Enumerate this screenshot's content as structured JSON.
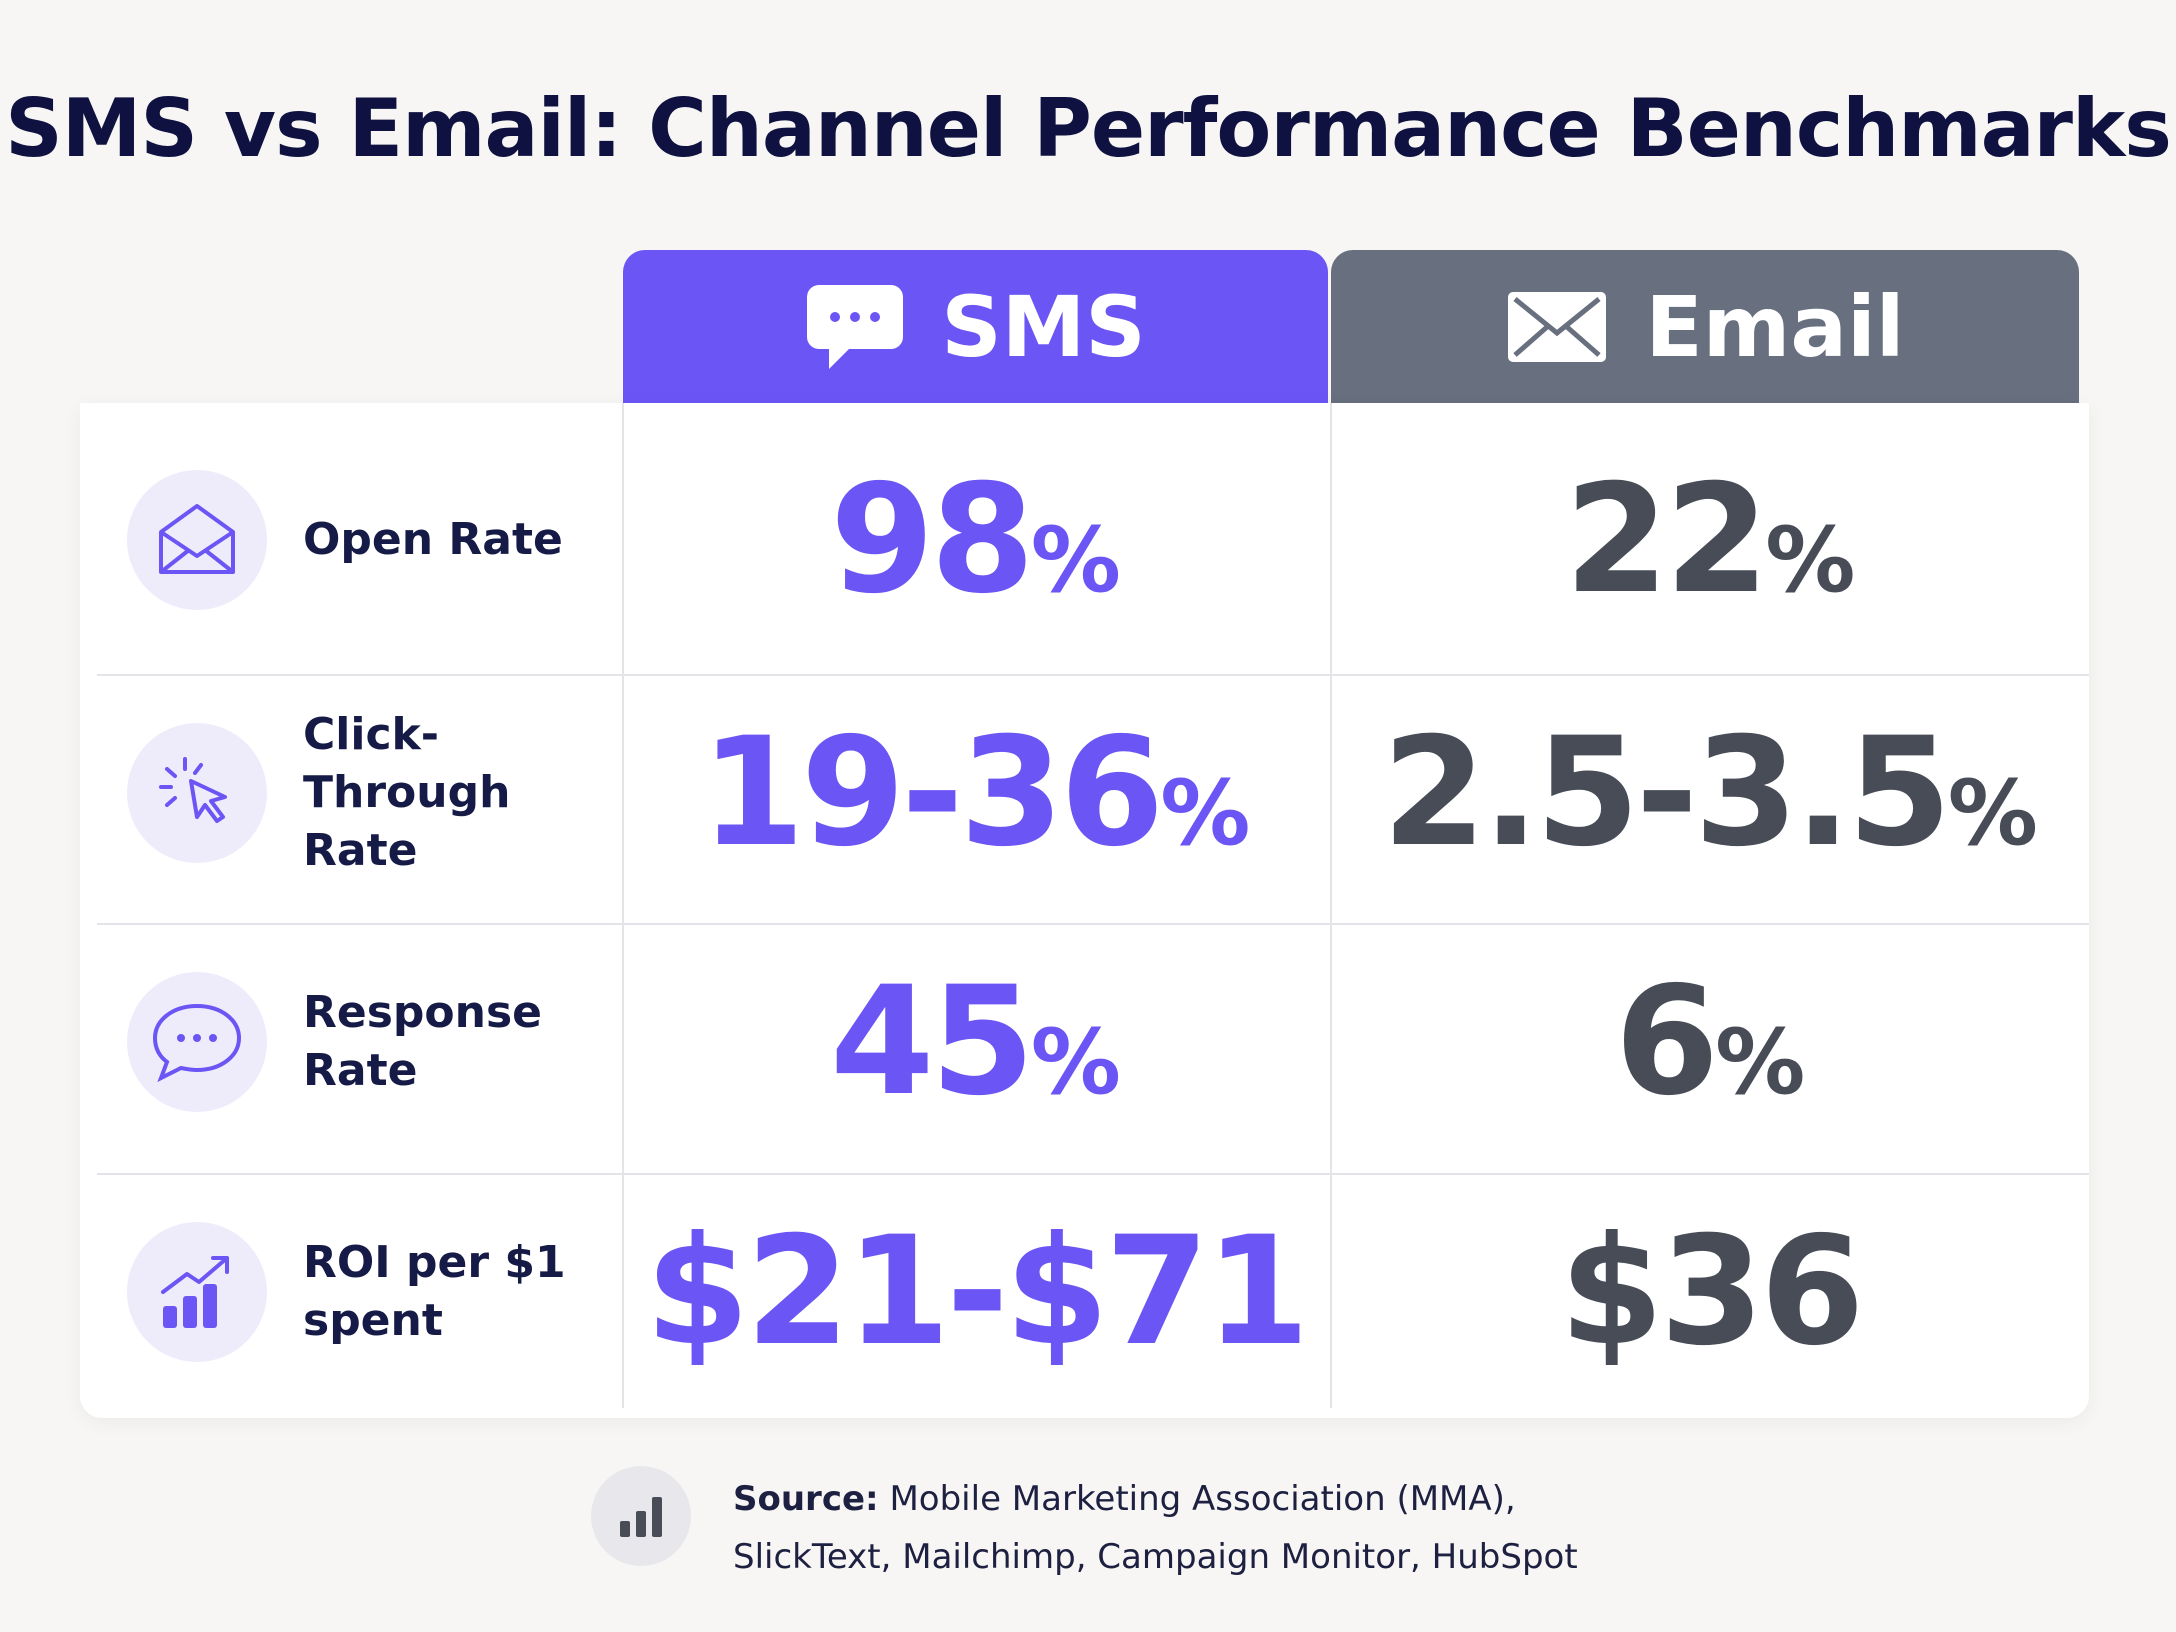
{
  "title": "SMS vs Email: Channel Performance Benchmarks",
  "columns": [
    "SMS",
    "Email"
  ],
  "rows": [
    {
      "label": "Open Rate",
      "sms": {
        "value": "98",
        "unit": "%"
      },
      "email": {
        "value": "22",
        "unit": "%"
      }
    },
    {
      "label": "Click-Through Rate",
      "sms": {
        "value": "19-36",
        "unit": "%"
      },
      "email": {
        "value": "2.5-3.5",
        "unit": "%"
      }
    },
    {
      "label": "Response Rate",
      "sms": {
        "value": "45",
        "unit": "%"
      },
      "email": {
        "value": "6",
        "unit": "%"
      }
    },
    {
      "label": "ROI per $1 spent",
      "sms": {
        "value": "$21-$71"
      },
      "email": {
        "value": "$36"
      }
    }
  ],
  "source": {
    "label": "Source:",
    "text": "Mobile Marketing Association (MMA), SlickText, Mailchimp, Campaign Monitor, HubSpot"
  }
}
